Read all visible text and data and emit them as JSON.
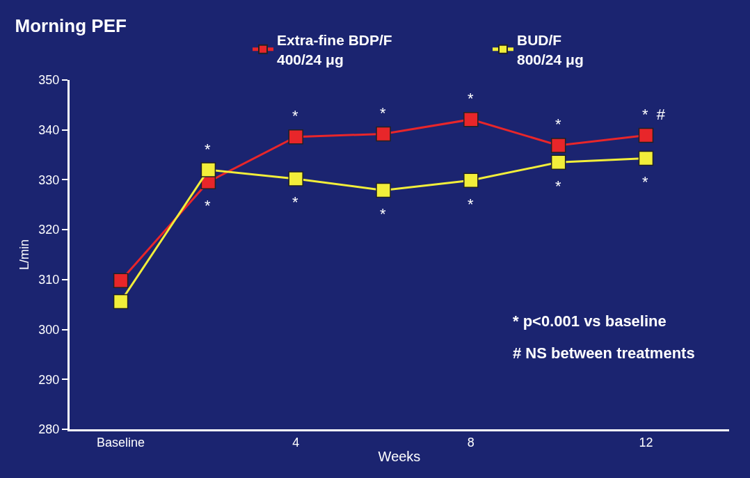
{
  "chart_data": {
    "type": "line",
    "title": "Morning PEF",
    "xlabel": "Weeks",
    "ylabel": "L/min",
    "x": [
      0,
      2,
      4,
      6,
      8,
      10,
      12
    ],
    "xlim": [
      -1.17,
      13.9
    ],
    "xticks": [
      {
        "value": 0,
        "label": "Baseline"
      },
      4,
      8,
      12
    ],
    "ylim": [
      280,
      350
    ],
    "yticks": [
      280,
      290,
      300,
      310,
      320,
      330,
      340,
      350
    ],
    "series": [
      {
        "name": "Extra-fine BDP/F\n400/24 μg",
        "color": "#e8262a",
        "values": [
          309.8,
          329.6,
          338.6,
          339.2,
          342.1,
          336.9,
          338.9
        ]
      },
      {
        "name": "BUD/F\n800/24 μg",
        "color": "#f2ee3a",
        "values": [
          305.6,
          332.0,
          330.2,
          327.9,
          329.9,
          333.5,
          334.3
        ]
      }
    ],
    "marker": "square",
    "line_style": "solid",
    "grid": false,
    "legend": "top right",
    "annotations": [
      {
        "text": "*",
        "x": 2,
        "y": 332.0
      },
      {
        "text": "*",
        "x": 2,
        "y": 329.6
      },
      {
        "text": "*",
        "x": 4,
        "y": 338.6
      },
      {
        "text": "*",
        "x": 4,
        "y": 330.2
      },
      {
        "text": "*",
        "x": 6,
        "y": 339.2
      },
      {
        "text": "*",
        "x": 6,
        "y": 327.9
      },
      {
        "text": "*",
        "x": 8,
        "y": 342.1
      },
      {
        "text": "*",
        "x": 8,
        "y": 329.9
      },
      {
        "text": "*",
        "x": 10,
        "y": 336.9
      },
      {
        "text": "*",
        "x": 10,
        "y": 333.5
      },
      {
        "text": "*  #",
        "x": 12,
        "y": 338.9
      },
      {
        "text": "*",
        "x": 12,
        "y": 334.3
      },
      "* p<0.001 vs baseline",
      "# NS between treatments"
    ]
  }
}
